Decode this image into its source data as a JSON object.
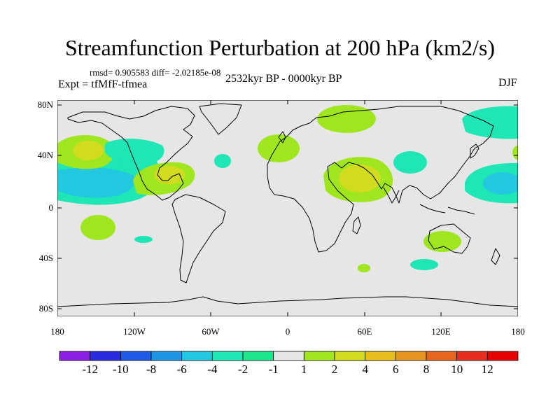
{
  "title": "Streamfunction Perturbation at 200 hPa (km2/s)",
  "stats": "rmsd= 0.905583 diff= -2.02185e-08",
  "experiment": "Expt = tfMfF-tfmea",
  "period": "2532kyr BP - 0000kyr BP",
  "season": "DJF",
  "lat_ticks": [
    "80N",
    "40N",
    "0",
    "40S",
    "80S"
  ],
  "lon_ticks": [
    "180",
    "120W",
    "60W",
    "0",
    "60E",
    "120E",
    "180"
  ],
  "colorbar": {
    "labels": [
      "-12",
      "-10",
      "-8",
      "-6",
      "-4",
      "-2",
      "-1",
      "1",
      "2",
      "4",
      "6",
      "8",
      "10",
      "12"
    ],
    "colors": [
      "#8c1ee6",
      "#2a2ae0",
      "#1e5ae6",
      "#1e96e6",
      "#22c8e0",
      "#1ee6b4",
      "#1ee68c",
      "#e6e6e6",
      "#a0e61e",
      "#d2dc1e",
      "#e6be1e",
      "#e6961e",
      "#e6641e",
      "#e62d1e",
      "#e60000"
    ]
  },
  "map_data": {
    "projection": "cylindrical equidistant",
    "field": "200 hPa streamfunction anomaly",
    "regions": [
      {
        "name": "north-pacific-dipole-north",
        "lon": -150,
        "lat": 40,
        "level": "4"
      },
      {
        "name": "north-pacific-dipole-south",
        "lon": -150,
        "lat": 18,
        "level": "-2"
      },
      {
        "name": "north-america-west",
        "lon": -120,
        "lat": 42,
        "level": "-2"
      },
      {
        "name": "gulf-of-mexico",
        "lon": -100,
        "lat": 23,
        "level": "4"
      },
      {
        "name": "middle-east",
        "lon": 55,
        "lat": 22,
        "level": "4"
      },
      {
        "name": "europe",
        "lon": -5,
        "lat": 45,
        "level": "2"
      },
      {
        "name": "east-europe-north",
        "lon": 40,
        "lat": 63,
        "level": "2"
      },
      {
        "name": "central-asia",
        "lon": 90,
        "lat": 37,
        "level": "-1"
      },
      {
        "name": "west-pacific",
        "lon": 165,
        "lat": 17,
        "level": "-2"
      },
      {
        "name": "arctic-pacific",
        "lon": 165,
        "lat": 66,
        "level": "-1"
      },
      {
        "name": "australia",
        "lon": 122,
        "lat": -25,
        "level": "2"
      },
      {
        "name": "south-indian",
        "lon": 105,
        "lat": -43,
        "level": "-1"
      },
      {
        "name": "south-pacific",
        "lon": -148,
        "lat": -10,
        "level": "2"
      }
    ]
  }
}
